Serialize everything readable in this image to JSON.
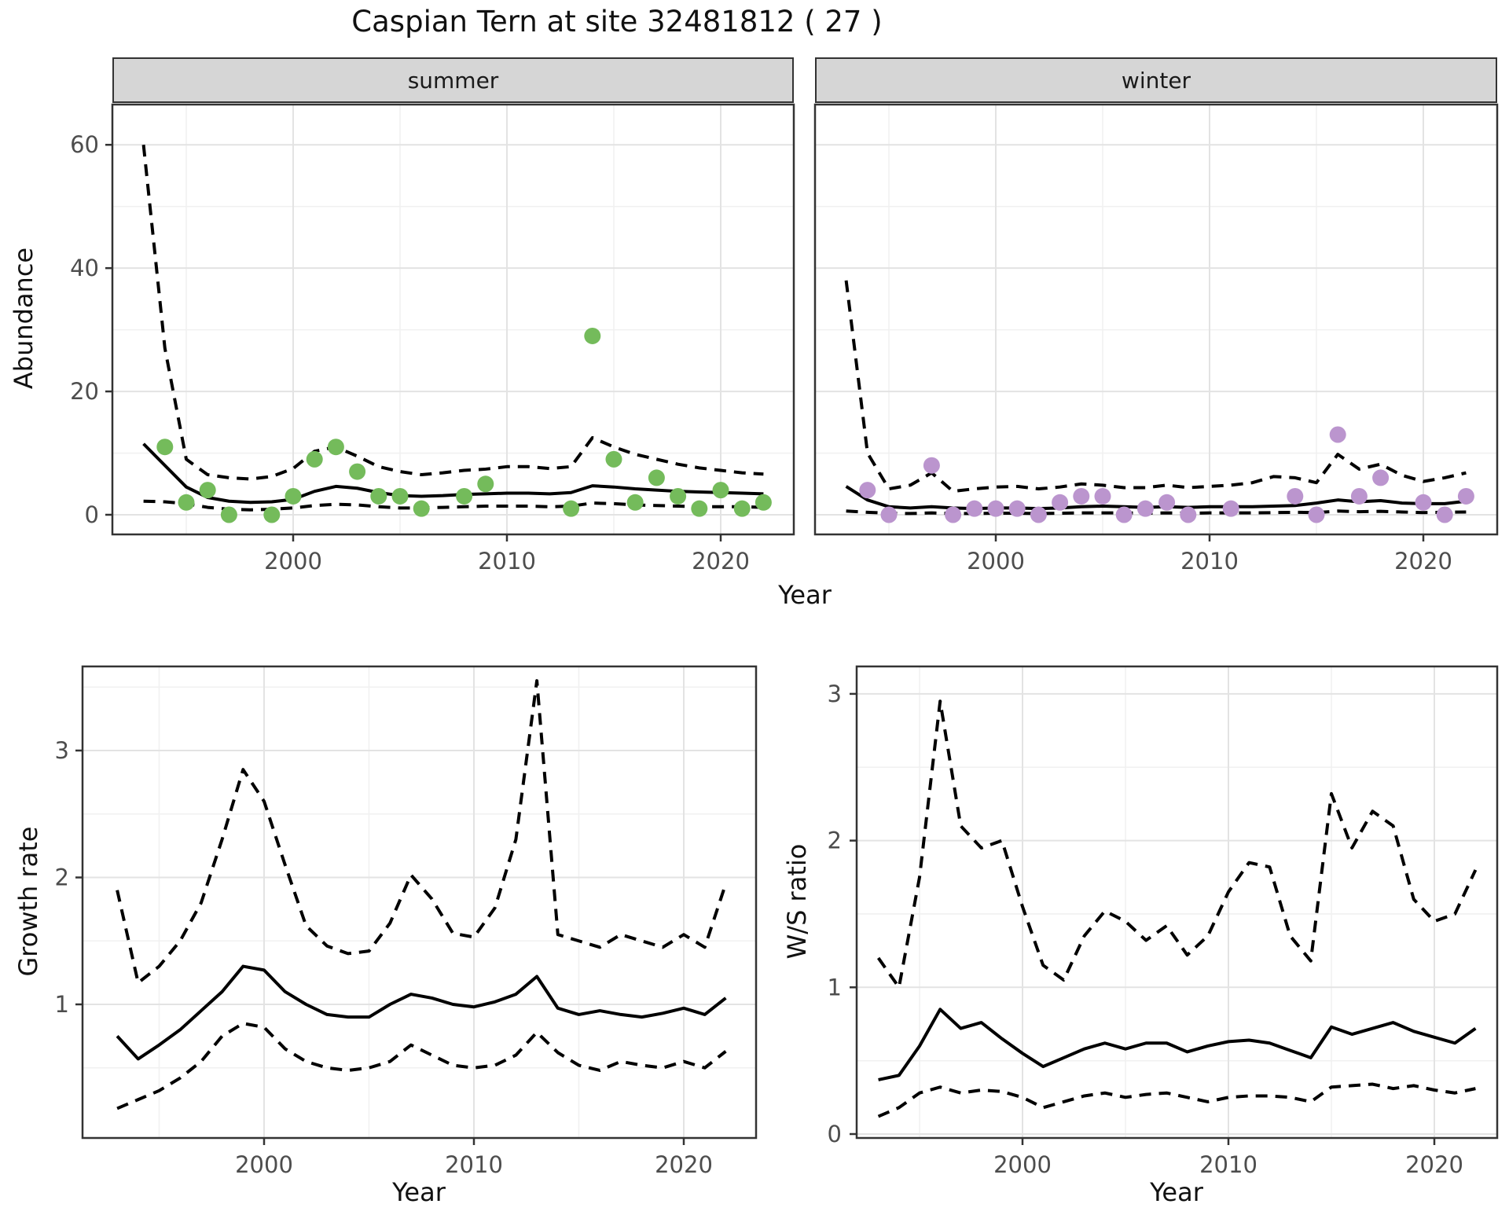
{
  "title": "Caspian Tern at site 32481812 ( 27 )",
  "colors": {
    "summer_point": "#74BB5B",
    "winter_point": "#BB95CE",
    "line": "#000000",
    "grid_major": "#E3E3E3",
    "grid_minor": "#F1F1F1",
    "strip_bg": "#D6D6D6",
    "panel_border": "#333333",
    "axis_text": "#4D4D4D",
    "text": "#111111"
  },
  "chart_data": [
    {
      "type": "scatter",
      "facet_label": "summer",
      "xlabel": "Year",
      "ylabel": "Abundance",
      "xlim": [
        1991.5,
        2023.5
      ],
      "ylim": [
        -3,
        67
      ],
      "xticks": [
        2000,
        2010,
        2020
      ],
      "xticks_minor": [
        1995,
        2005,
        2015
      ],
      "yticks": [
        0,
        20,
        40,
        60
      ],
      "yticks_minor": [
        10,
        30,
        50
      ],
      "grid": true,
      "legend": "none",
      "point_color": "#74BB5B",
      "points": {
        "years": [
          1994,
          1995,
          1996,
          1997,
          1999,
          2000,
          2001,
          2002,
          2003,
          2004,
          2005,
          2006,
          2008,
          2009,
          2013,
          2014,
          2015,
          2016,
          2017,
          2018,
          2019,
          2020,
          2021,
          2022
        ],
        "values": [
          11,
          2,
          4,
          0,
          0,
          3,
          9,
          11,
          7,
          3,
          3,
          1,
          3,
          5,
          1,
          29,
          9,
          2,
          6,
          3,
          1,
          4,
          1,
          2
        ]
      },
      "fit": {
        "years": [
          1993,
          1994,
          1995,
          1996,
          1997,
          1998,
          1999,
          2000,
          2001,
          2002,
          2003,
          2004,
          2005,
          2006,
          2007,
          2008,
          2009,
          2010,
          2011,
          2012,
          2013,
          2014,
          2015,
          2016,
          2017,
          2018,
          2019,
          2020,
          2021,
          2022
        ],
        "mean": [
          11.5,
          8.0,
          4.5,
          2.8,
          2.2,
          2.0,
          2.1,
          2.5,
          3.8,
          4.6,
          4.3,
          3.6,
          3.1,
          3.0,
          3.1,
          3.3,
          3.4,
          3.5,
          3.5,
          3.4,
          3.6,
          4.7,
          4.5,
          4.2,
          4.0,
          3.8,
          3.7,
          3.6,
          3.5,
          3.4
        ],
        "upper95": [
          60,
          27,
          9,
          6.5,
          6.0,
          5.8,
          6.2,
          7.5,
          10.3,
          11.0,
          9.5,
          7.8,
          7.0,
          6.5,
          6.8,
          7.2,
          7.4,
          7.8,
          7.8,
          7.5,
          7.8,
          12.5,
          11.0,
          9.8,
          9.0,
          8.2,
          7.6,
          7.2,
          6.8,
          6.6
        ],
        "lower95": [
          2.2,
          2.1,
          1.8,
          1.2,
          0.9,
          0.8,
          0.9,
          1.1,
          1.5,
          1.7,
          1.6,
          1.3,
          1.1,
          1.1,
          1.2,
          1.3,
          1.4,
          1.4,
          1.4,
          1.3,
          1.4,
          1.9,
          1.8,
          1.6,
          1.5,
          1.4,
          1.3,
          1.3,
          1.3,
          1.2
        ]
      }
    },
    {
      "type": "scatter",
      "facet_label": "winter",
      "xlabel": "Year",
      "ylabel": "Abundance",
      "xlim": [
        1991.5,
        2023.5
      ],
      "ylim": [
        -3,
        67
      ],
      "xticks": [
        2000,
        2010,
        2020
      ],
      "xticks_minor": [
        1995,
        2005,
        2015
      ],
      "yticks": [
        0,
        20,
        40,
        60
      ],
      "yticks_minor": [
        10,
        30,
        50
      ],
      "grid": true,
      "legend": "none",
      "point_color": "#BB95CE",
      "points": {
        "years": [
          1994,
          1995,
          1997,
          1998,
          1999,
          2000,
          2001,
          2002,
          2003,
          2004,
          2005,
          2006,
          2007,
          2008,
          2009,
          2011,
          2014,
          2015,
          2016,
          2017,
          2018,
          2020,
          2021,
          2022
        ],
        "values": [
          4,
          0,
          8,
          0,
          1,
          1,
          1,
          0,
          2,
          3,
          3,
          0,
          1,
          2,
          0,
          1,
          3,
          0,
          13,
          3,
          6,
          2,
          0,
          3
        ]
      },
      "fit": {
        "years": [
          1993,
          1994,
          1995,
          1996,
          1997,
          1998,
          1999,
          2000,
          2001,
          2002,
          2003,
          2004,
          2005,
          2006,
          2007,
          2008,
          2009,
          2010,
          2011,
          2012,
          2013,
          2014,
          2015,
          2016,
          2017,
          2018,
          2019,
          2020,
          2021,
          2022
        ],
        "mean": [
          4.6,
          2.4,
          1.3,
          1.1,
          1.3,
          1.1,
          1.0,
          1.1,
          1.1,
          1.0,
          1.1,
          1.3,
          1.4,
          1.3,
          1.2,
          1.3,
          1.2,
          1.3,
          1.3,
          1.3,
          1.4,
          1.5,
          1.9,
          2.4,
          2.1,
          2.3,
          1.9,
          1.8,
          1.8,
          2.2
        ],
        "upper95": [
          38,
          10,
          4.2,
          4.8,
          6.8,
          3.8,
          4.2,
          4.5,
          4.6,
          4.2,
          4.5,
          5.0,
          4.8,
          4.4,
          4.4,
          4.8,
          4.4,
          4.6,
          4.8,
          5.2,
          6.2,
          6.0,
          5.2,
          9.8,
          7.4,
          8.2,
          6.4,
          5.4,
          6.0,
          6.8
        ],
        "lower95": [
          0.6,
          0.4,
          0.25,
          0.2,
          0.3,
          0.2,
          0.2,
          0.25,
          0.25,
          0.2,
          0.25,
          0.3,
          0.3,
          0.3,
          0.25,
          0.3,
          0.25,
          0.3,
          0.3,
          0.3,
          0.35,
          0.4,
          0.35,
          0.6,
          0.5,
          0.55,
          0.45,
          0.35,
          0.4,
          0.45
        ]
      }
    },
    {
      "type": "line",
      "facet_label": "",
      "xlabel": "Year",
      "ylabel": "Growth rate",
      "xlim": [
        1991.3,
        2023.4
      ],
      "ylim": [
        0.05,
        3.72
      ],
      "xticks": [
        2000,
        2010,
        2020
      ],
      "xticks_minor": [
        1995,
        2005,
        2015
      ],
      "yticks": [
        1,
        2,
        3
      ],
      "yticks_minor": [
        0.5,
        1.5,
        2.5,
        3.5
      ],
      "grid": true,
      "legend": "none",
      "fit": {
        "years": [
          1993,
          1994,
          1995,
          1996,
          1997,
          1998,
          1999,
          2000,
          2001,
          2002,
          2003,
          2004,
          2005,
          2006,
          2007,
          2008,
          2009,
          2010,
          2011,
          2012,
          2013,
          2014,
          2015,
          2016,
          2017,
          2018,
          2019,
          2020,
          2021,
          2022
        ],
        "mean": [
          0.75,
          0.57,
          0.68,
          0.8,
          0.95,
          1.1,
          1.3,
          1.27,
          1.1,
          1.0,
          0.92,
          0.9,
          0.9,
          1.0,
          1.08,
          1.05,
          1.0,
          0.98,
          1.02,
          1.08,
          1.22,
          0.97,
          0.92,
          0.95,
          0.92,
          0.9,
          0.93,
          0.97,
          0.92,
          1.05
        ],
        "upper95": [
          1.9,
          1.17,
          1.3,
          1.5,
          1.8,
          2.3,
          2.85,
          2.6,
          2.1,
          1.62,
          1.46,
          1.4,
          1.42,
          1.64,
          2.02,
          1.83,
          1.56,
          1.53,
          1.76,
          2.3,
          3.55,
          1.55,
          1.5,
          1.45,
          1.55,
          1.5,
          1.45,
          1.55,
          1.45,
          1.95
        ],
        "lower95": [
          0.18,
          0.25,
          0.32,
          0.42,
          0.55,
          0.75,
          0.85,
          0.82,
          0.65,
          0.55,
          0.5,
          0.48,
          0.5,
          0.55,
          0.68,
          0.6,
          0.52,
          0.5,
          0.52,
          0.6,
          0.78,
          0.62,
          0.52,
          0.48,
          0.55,
          0.52,
          0.5,
          0.55,
          0.5,
          0.63
        ]
      }
    },
    {
      "type": "line",
      "facet_label": "",
      "xlabel": "Year",
      "ylabel": "W/S ratio",
      "xlim": [
        1991.9,
        2023.0
      ],
      "ylim": [
        -0.03,
        3.19
      ],
      "xticks": [
        2000,
        2010,
        2020
      ],
      "xticks_minor": [
        1995,
        2005,
        2015
      ],
      "yticks": [
        0,
        1,
        2,
        3
      ],
      "yticks_minor": [
        0.5,
        1.5,
        2.5
      ],
      "grid": true,
      "legend": "none",
      "fit": {
        "years": [
          1993,
          1994,
          1995,
          1996,
          1997,
          1998,
          1999,
          2000,
          2001,
          2002,
          2003,
          2004,
          2005,
          2006,
          2007,
          2008,
          2009,
          2010,
          2011,
          2012,
          2013,
          2014,
          2015,
          2016,
          2017,
          2018,
          2019,
          2020,
          2021,
          2022
        ],
        "mean": [
          0.37,
          0.4,
          0.6,
          0.85,
          0.72,
          0.76,
          0.65,
          0.55,
          0.46,
          0.52,
          0.58,
          0.62,
          0.58,
          0.62,
          0.62,
          0.56,
          0.6,
          0.63,
          0.64,
          0.62,
          0.57,
          0.52,
          0.73,
          0.68,
          0.72,
          0.76,
          0.7,
          0.66,
          0.62,
          0.72
        ],
        "upper95": [
          1.2,
          1.0,
          1.75,
          2.95,
          2.1,
          1.95,
          2.0,
          1.55,
          1.15,
          1.05,
          1.35,
          1.52,
          1.45,
          1.32,
          1.42,
          1.22,
          1.35,
          1.65,
          1.85,
          1.82,
          1.35,
          1.18,
          2.32,
          1.95,
          2.2,
          2.1,
          1.6,
          1.45,
          1.5,
          1.8
        ],
        "lower95": [
          0.12,
          0.18,
          0.28,
          0.32,
          0.28,
          0.3,
          0.29,
          0.25,
          0.18,
          0.22,
          0.26,
          0.28,
          0.25,
          0.27,
          0.28,
          0.25,
          0.22,
          0.25,
          0.26,
          0.26,
          0.25,
          0.22,
          0.32,
          0.33,
          0.34,
          0.31,
          0.33,
          0.3,
          0.28,
          0.31
        ]
      }
    }
  ]
}
